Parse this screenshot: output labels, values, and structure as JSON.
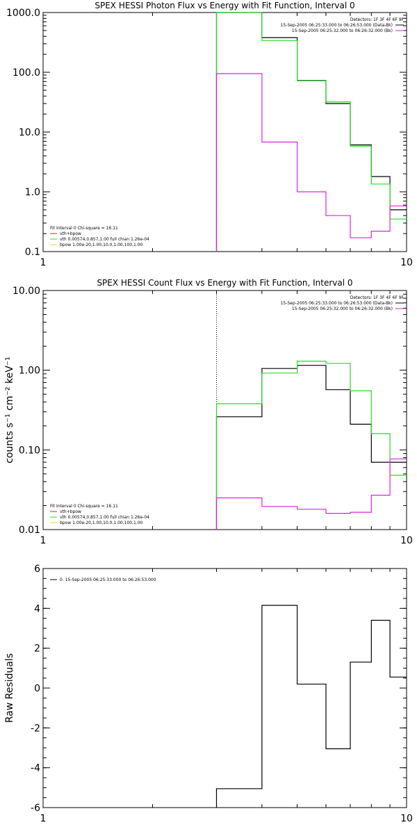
{
  "colors": {
    "data": "#000000",
    "model": "#22dd22",
    "background": "#dd22dd",
    "component_vth": "#22dd22",
    "component_sum": "#dd2222",
    "component_bpow": "#dddd22"
  },
  "chart_data": [
    {
      "type": "line",
      "title": "SPEX HESSI Photon Flux vs Energy with Fit Function, Interval 0",
      "xlabel": "",
      "ylabel": "",
      "xscale": "log",
      "yscale": "log",
      "xlim": [
        1,
        10
      ],
      "ylim": [
        0.1,
        1000
      ],
      "x_ticks": [
        "1",
        "10"
      ],
      "y_ticks": [
        {
          "value": 0.1,
          "label": "0.1"
        },
        {
          "value": 1,
          "label": "1.0"
        },
        {
          "value": 10,
          "label": "10.0"
        },
        {
          "value": 100,
          "label": "100.0"
        },
        {
          "value": 1000,
          "label": "1000.0"
        }
      ],
      "edges": [
        3,
        4,
        5,
        6,
        7,
        8,
        9,
        10
      ],
      "start_line_x": 3,
      "series": [
        {
          "key": "data",
          "values": [
            1000,
            380,
            73,
            30,
            6.1,
            1.8,
            0.5
          ]
        },
        {
          "key": "model",
          "values": [
            1000,
            340,
            72,
            32,
            5.8,
            1.35,
            0.35
          ]
        },
        {
          "key": "background",
          "values": [
            95,
            6.8,
            1.0,
            0.4,
            0.17,
            0.22,
            0.58
          ]
        }
      ],
      "legend_right": {
        "detectors": "Detectors: 1F 3F 4F 6F 9F",
        "entries": [
          {
            "key": "data",
            "text": "15-Sep-2005 06:25:33.000 to 06:26:53.000 (Data-Bk)"
          },
          {
            "key": "background",
            "text": "15-Sep-2005 06:25:32.000 to 06:26:32.000 (Bk)"
          }
        ]
      },
      "legend_left": {
        "header": "Fit Interval 0   Chi-square = 16.11",
        "entries": [
          {
            "key": "component_sum",
            "text": "vth+bpow"
          },
          {
            "key": "component_vth",
            "text": "vth 0.00574,0.857,1.00  full chian 1.26e-04"
          },
          {
            "key": "component_bpow",
            "text": "bpow 1.00e-20,1.00,10.0,1.00,100,1.00"
          }
        ]
      }
    },
    {
      "type": "line",
      "title": "SPEX HESSI Count Flux vs Energy with Fit Function, Interval 0",
      "xlabel": "",
      "ylabel": "counts s⁻¹ cm⁻² keV⁻¹",
      "xscale": "log",
      "yscale": "log",
      "xlim": [
        1,
        10
      ],
      "ylim": [
        0.01,
        10
      ],
      "x_ticks": [
        "1",
        "10"
      ],
      "y_ticks": [
        {
          "value": 0.01,
          "label": "0.01"
        },
        {
          "value": 0.1,
          "label": "0.10"
        },
        {
          "value": 1,
          "label": "1.00"
        },
        {
          "value": 10,
          "label": "10.00"
        }
      ],
      "edges": [
        3,
        4,
        5,
        6,
        7,
        8,
        9,
        10
      ],
      "start_line_x": 3,
      "series": [
        {
          "key": "data",
          "values": [
            0.26,
            1.05,
            1.15,
            0.57,
            0.21,
            0.07,
            0.07
          ]
        },
        {
          "key": "model",
          "values": [
            0.38,
            0.92,
            1.3,
            1.22,
            0.55,
            0.16,
            0.048
          ]
        },
        {
          "key": "background",
          "values": [
            0.025,
            0.0195,
            0.018,
            0.016,
            0.0165,
            0.027,
            0.077
          ]
        }
      ],
      "legend_right": {
        "detectors": "Detectors: 1F 3F 4F 6F 9F",
        "entries": [
          {
            "key": "data",
            "text": "15-Sep-2005 06:25:33.000 to 06:26:53.000 (Data-Bk)"
          },
          {
            "key": "background",
            "text": "15-Sep-2005 06:25:32.000 to 06:26:32.000 (Bk)"
          }
        ]
      },
      "legend_left": {
        "header": "Fit Interval 0   Chi-square = 16.11",
        "entries": [
          {
            "key": "component_sum",
            "text": "vth+bpow"
          },
          {
            "key": "component_vth",
            "text": "vth 0.00574,0.857,1.00  full chian 1.26e-04"
          },
          {
            "key": "component_bpow",
            "text": "bpow 1.00e-20,1.00,10.0,1.00,100,1.00"
          }
        ]
      }
    },
    {
      "type": "line",
      "title": "",
      "xlabel": "",
      "ylabel": "Raw Residuals",
      "xscale": "log",
      "yscale": "linear",
      "xlim": [
        1,
        10
      ],
      "ylim": [
        -6,
        6
      ],
      "x_ticks": [
        "1",
        "10"
      ],
      "y_ticks": [
        {
          "value": -6,
          "label": "-6"
        },
        {
          "value": -4,
          "label": "-4"
        },
        {
          "value": -2,
          "label": "-2"
        },
        {
          "value": 0,
          "label": "0"
        },
        {
          "value": 2,
          "label": "2"
        },
        {
          "value": 4,
          "label": "4"
        },
        {
          "value": 6,
          "label": "6"
        }
      ],
      "edges": [
        3,
        4,
        5,
        6,
        7,
        8,
        9,
        10
      ],
      "start_line_x": null,
      "series": [
        {
          "key": "data",
          "values": [
            -5.05,
            4.15,
            0.2,
            -3.05,
            1.3,
            3.4,
            0.55
          ]
        }
      ],
      "legend_left": {
        "header": "",
        "entries": [
          {
            "key": "data",
            "text": "0. 15-Sep-2005 06:25:33.000 to 06:26:53.000"
          }
        ]
      }
    }
  ]
}
